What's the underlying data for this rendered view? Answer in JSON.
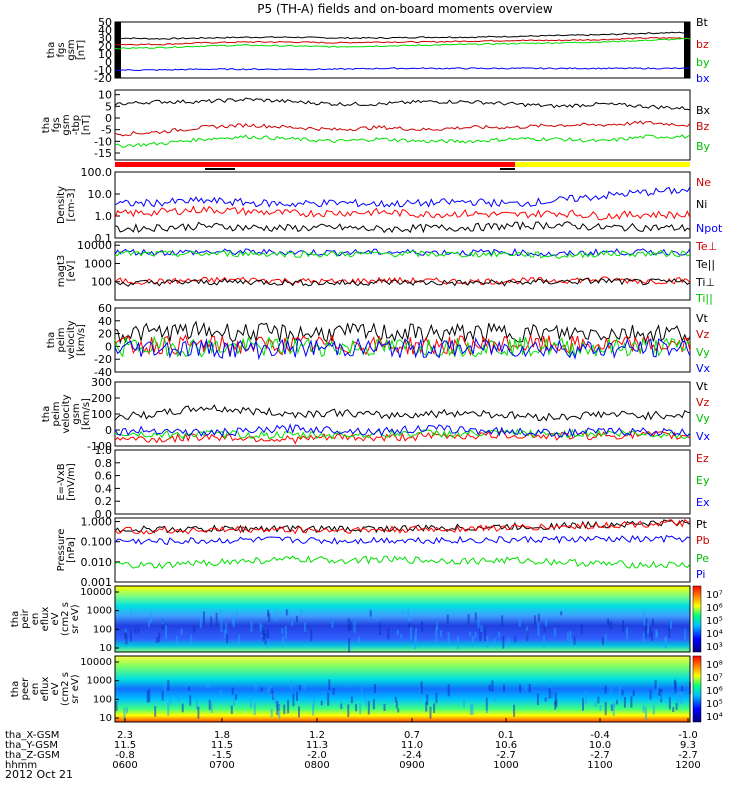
{
  "title": "P5 (TH-A) fields and on-board moments overview",
  "date_label": "2012 Oct 21",
  "colors": {
    "black": "#000000",
    "red": "#ff0000",
    "green": "#00e000",
    "blue": "#0000ff",
    "yellow": "#ffff00",
    "darkred": "#cc0000"
  },
  "chart_data": [
    {
      "id": "fgs",
      "type": "line",
      "ylabel": [
        "tha",
        "fgs",
        "gsm",
        "[nT]"
      ],
      "ylim": [
        -20,
        50
      ],
      "yticks": [
        "50",
        "40",
        "30",
        "20",
        "10",
        "0",
        "-10",
        "-20"
      ],
      "legend": [
        "Bt",
        "bz",
        "by",
        "bx"
      ],
      "series": [
        {
          "name": "Bt",
          "color": "#000000",
          "values": [
            30,
            29,
            30,
            31,
            31,
            30,
            30,
            31,
            31,
            32,
            33,
            34,
            36,
            37
          ]
        },
        {
          "name": "bz",
          "color": "#cc0000",
          "values": [
            22,
            22,
            24,
            25,
            25,
            24,
            25,
            25,
            26,
            27,
            27,
            28,
            30,
            30
          ]
        },
        {
          "name": "by",
          "color": "#00e000",
          "values": [
            17,
            18,
            20,
            21,
            20,
            19,
            20,
            21,
            22,
            23,
            24,
            25,
            27,
            29
          ]
        },
        {
          "name": "bx",
          "color": "#0000ff",
          "values": [
            -10,
            -10,
            -9,
            -9,
            -9,
            -9,
            -8,
            -8,
            -8,
            -8,
            -8,
            -8,
            -8,
            -8
          ]
        }
      ]
    },
    {
      "id": "fgs_dsl",
      "type": "line",
      "ylabel": [
        "tha",
        "fgs",
        "gsm",
        "-tbp",
        "[nT]"
      ],
      "ylim": [
        -18,
        12
      ],
      "yticks": [
        "10",
        "5",
        "0",
        "-5",
        "-10",
        "-15"
      ],
      "legend": [
        "Bx",
        "Bz",
        "By"
      ],
      "series": [
        {
          "name": "Bx",
          "color": "#000000",
          "values": [
            6,
            7,
            7,
            8,
            7,
            6,
            6,
            7,
            7,
            6,
            5,
            6,
            5,
            4
          ]
        },
        {
          "name": "Bz",
          "color": "#cc0000",
          "values": [
            -7,
            -6,
            -4,
            -3,
            -4,
            -5,
            -4,
            -5,
            -4,
            -4,
            -3,
            -3,
            -2,
            -3
          ]
        },
        {
          "name": "By",
          "color": "#00e000",
          "values": [
            -12,
            -11,
            -9,
            -8,
            -9,
            -10,
            -9,
            -10,
            -10,
            -9,
            -9,
            -10,
            -8,
            -8
          ]
        }
      ]
    },
    {
      "id": "density",
      "type": "line",
      "scale": "log",
      "ylabel": [
        "Density",
        "[cm-3]"
      ],
      "ylim": [
        0.1,
        100
      ],
      "yticks": [
        "100.0",
        "10.0",
        "1.0",
        "0.1"
      ],
      "legend": [
        "Ne",
        "Ni",
        "Npot"
      ],
      "series": [
        {
          "name": "Ne",
          "color": "#ff0000",
          "values": [
            1.2,
            1.5,
            2.0,
            1.6,
            1.3,
            1.4,
            1.5,
            1.2,
            1.3,
            1.1,
            1.4,
            1.0,
            1.2,
            1.1
          ]
        },
        {
          "name": "Ni",
          "color": "#000000",
          "values": [
            0.25,
            0.3,
            0.35,
            0.3,
            0.28,
            0.3,
            0.25,
            0.28,
            0.3,
            0.35,
            0.4,
            0.3,
            0.3,
            0.28
          ]
        },
        {
          "name": "Npot",
          "color": "#0000ff",
          "values": [
            3.5,
            4.0,
            5.0,
            4.0,
            3.5,
            4.0,
            3.5,
            3.8,
            4.5,
            3.5,
            5.0,
            8.0,
            12.0,
            15.0
          ]
        }
      ]
    },
    {
      "id": "temperature",
      "type": "line",
      "scale": "log",
      "ylabel": [
        "magt3",
        "[eV]"
      ],
      "ylim": [
        10,
        15000
      ],
      "yticks": [
        "10000",
        "1000",
        "100"
      ],
      "legend": [
        "Te⊥",
        "Te||",
        "Ti⊥",
        "Ti||"
      ],
      "series": [
        {
          "name": "Te⊥",
          "color": "#ff0000",
          "values": [
            110,
            100,
            120,
            130,
            110,
            100,
            120,
            110,
            100,
            110,
            120,
            130,
            110,
            120
          ]
        },
        {
          "name": "Te||",
          "color": "#000000",
          "values": [
            80,
            90,
            95,
            100,
            90,
            85,
            95,
            90,
            85,
            90,
            100,
            110,
            95,
            100
          ]
        },
        {
          "name": "Ti⊥",
          "color": "#0000ff",
          "values": [
            4500,
            4000,
            4200,
            4300,
            4100,
            4000,
            4200,
            4100,
            4000,
            4200,
            3000,
            4300,
            4200,
            4300
          ]
        },
        {
          "name": "Ti||",
          "color": "#00e000",
          "values": [
            3500,
            3200,
            3400,
            3500,
            3300,
            3200,
            3400,
            3300,
            3200,
            3400,
            2500,
            3500,
            3400,
            3500
          ]
        }
      ]
    },
    {
      "id": "peim_vel",
      "type": "line",
      "ylabel": [
        "tha",
        "peim",
        "velocity",
        "[km/s]"
      ],
      "ylim": [
        -40,
        60
      ],
      "yticks": [
        "60",
        "40",
        "20",
        "0",
        "-20",
        "-40"
      ],
      "legend": [
        "Vt",
        "Vz",
        "Vy",
        "Vx"
      ],
      "series": [
        {
          "name": "Vt",
          "color": "#000000",
          "values": [
            20,
            22,
            24,
            22,
            20,
            21,
            22,
            20,
            21,
            22,
            20,
            22,
            21,
            22
          ]
        },
        {
          "name": "Vz",
          "color": "#ff0000",
          "values": [
            2,
            3,
            2,
            1,
            2,
            3,
            2,
            1,
            2,
            3,
            2,
            1,
            2,
            2
          ]
        },
        {
          "name": "Vy",
          "color": "#00e000",
          "values": [
            -1,
            0,
            -2,
            -1,
            0,
            -1,
            -2,
            0,
            -1,
            0,
            -1,
            -2,
            -1,
            0
          ]
        },
        {
          "name": "Vx",
          "color": "#0000ff",
          "values": [
            -3,
            -2,
            -3,
            -4,
            -3,
            -2,
            -3,
            -4,
            -3,
            -2,
            -3,
            -4,
            -3,
            -2
          ]
        }
      ]
    },
    {
      "id": "peim_vel_gsm",
      "type": "line",
      "ylabel": [
        "tha",
        "peim",
        "velocity",
        "gsm",
        "[km/s]"
      ],
      "ylim": [
        -100,
        300
      ],
      "yticks": [
        "300",
        "200",
        "100",
        "0",
        "-100"
      ],
      "legend": [
        "Vt",
        "Vz",
        "Vy",
        "Vx"
      ],
      "series": [
        {
          "name": "Vt",
          "color": "#000000",
          "values": [
            80,
            100,
            140,
            120,
            100,
            110,
            90,
            100,
            110,
            90,
            80,
            100,
            90,
            100
          ]
        },
        {
          "name": "Vz",
          "color": "#ff0000",
          "values": [
            -50,
            -60,
            -40,
            -50,
            -60,
            -45,
            -50,
            -40,
            -35,
            -30,
            -40,
            -35,
            -30,
            -40
          ]
        },
        {
          "name": "Vy",
          "color": "#00e000",
          "values": [
            -20,
            -30,
            -25,
            -30,
            -35,
            -30,
            -25,
            -20,
            -25,
            -20,
            -25,
            -20,
            -25,
            -30
          ]
        },
        {
          "name": "Vx",
          "color": "#0000ff",
          "values": [
            -10,
            0,
            -20,
            -10,
            10,
            0,
            -10,
            10,
            0,
            -10,
            -20,
            -10,
            -10,
            -20
          ]
        }
      ]
    },
    {
      "id": "efield",
      "type": "line",
      "ylabel": [
        "E=-VxB",
        "[mV/m]"
      ],
      "ylim": [
        0,
        1
      ],
      "yticks": [
        "1.0",
        "0.8",
        "0.6",
        "0.4",
        "0.2",
        "0.0"
      ],
      "legend": [
        "Ez",
        "Ey",
        "Ex"
      ],
      "series": []
    },
    {
      "id": "pressure",
      "type": "line",
      "scale": "log",
      "ylabel": [
        "Pressure",
        "[nPa]"
      ],
      "ylim": [
        0.001,
        1.5
      ],
      "yticks": [
        "1.000",
        "0.100",
        "0.010",
        "0.001"
      ],
      "legend": [
        "Pt",
        "Pb",
        "Pe",
        "Pi"
      ],
      "series": [
        {
          "name": "Pt",
          "color": "#000000",
          "values": [
            0.42,
            0.4,
            0.42,
            0.45,
            0.44,
            0.42,
            0.44,
            0.46,
            0.5,
            0.55,
            0.6,
            0.7,
            0.8,
            0.9
          ]
        },
        {
          "name": "Pb",
          "color": "#ff0000",
          "values": [
            0.36,
            0.35,
            0.37,
            0.4,
            0.38,
            0.37,
            0.38,
            0.4,
            0.45,
            0.5,
            0.55,
            0.65,
            0.75,
            0.85
          ]
        },
        {
          "name": "Pe",
          "color": "#00e000",
          "values": [
            0.007,
            0.006,
            0.009,
            0.011,
            0.013,
            0.012,
            0.013,
            0.012,
            0.011,
            0.012,
            0.01,
            0.008,
            0.007,
            0.007
          ]
        },
        {
          "name": "Pi",
          "color": "#0000ff",
          "values": [
            0.11,
            0.1,
            0.11,
            0.12,
            0.12,
            0.11,
            0.12,
            0.12,
            0.12,
            0.12,
            0.13,
            0.13,
            0.13,
            0.14
          ]
        }
      ]
    },
    {
      "id": "peir_spec",
      "type": "heatmap",
      "ylabel": [
        "tha",
        "peir",
        "en",
        "eflux",
        "eV",
        "(cm2 s",
        "sr eV)"
      ],
      "yticks": [
        "10000",
        "1000",
        "100",
        "10"
      ],
      "colorbar_ticks": [
        "10⁷",
        "10⁶",
        "10⁵",
        "10⁴",
        "10³"
      ]
    },
    {
      "id": "peer_spec",
      "type": "heatmap",
      "ylabel": [
        "tha",
        "peer",
        "en",
        "eflux",
        "eV",
        "(cm2 s",
        "sr eV)"
      ],
      "yticks": [
        "10000",
        "1000",
        "100",
        "10"
      ],
      "colorbar_ticks": [
        "10⁸",
        "10⁷",
        "10⁶",
        "10⁵",
        "10⁴"
      ]
    }
  ],
  "xaxis": {
    "rows": [
      {
        "label": "tha_X-GSM",
        "values": [
          "2.3",
          "1.8",
          "1.2",
          "0.7",
          "0.1",
          "-0.4",
          "-1.0"
        ]
      },
      {
        "label": "tha_Y-GSM",
        "values": [
          "11.5",
          "11.5",
          "11.3",
          "11.0",
          "10.6",
          "10.0",
          "9.3"
        ]
      },
      {
        "label": "tha_Z-GSM",
        "values": [
          "-0.8",
          "-1.5",
          "-2.0",
          "-2.4",
          "-2.7",
          "-2.7",
          "-2.7"
        ]
      },
      {
        "label": "hhmm",
        "values": [
          "0600",
          "0700",
          "0800",
          "0900",
          "1000",
          "1100",
          "1200"
        ]
      }
    ]
  }
}
